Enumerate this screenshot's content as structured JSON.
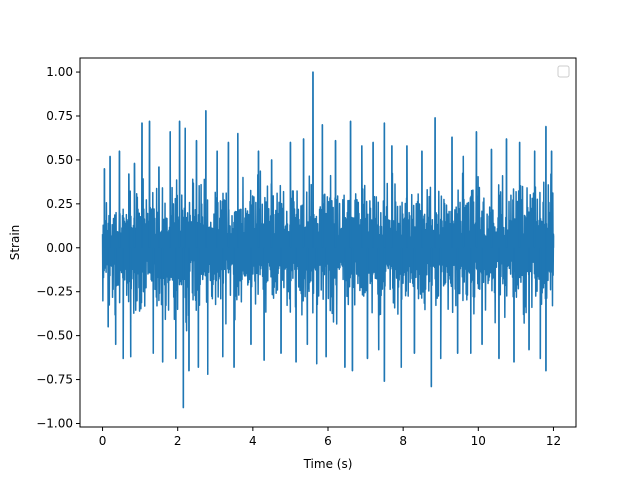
{
  "chart_data": {
    "type": "line",
    "title": "",
    "xlabel": "Time (s)",
    "ylabel": "Strain",
    "xlim": [
      -0.6,
      12.6
    ],
    "ylim": [
      -1.02,
      1.08
    ],
    "xticks": [
      0,
      2,
      4,
      6,
      8,
      10,
      12
    ],
    "xtick_labels": [
      "0",
      "2",
      "4",
      "6",
      "8",
      "10",
      "12"
    ],
    "yticks": [
      -1.0,
      -0.75,
      -0.5,
      -0.25,
      0.0,
      0.25,
      0.5,
      0.75,
      1.0
    ],
    "ytick_labels": [
      "−1.00",
      "−0.75",
      "−0.50",
      "−0.25",
      "0.00",
      "0.25",
      "0.50",
      "0.75",
      "1.00"
    ],
    "grid": false,
    "legend": {
      "placement": "upper-right",
      "entries": []
    },
    "series": [
      {
        "color": "#1f77b4",
        "x_start": 0.0,
        "x_end": 12.0,
        "typical_range": [
          -0.45,
          0.45
        ],
        "description_of_values": "dense noise-like strain signal",
        "peaks": [
          {
            "x": 0.05,
            "y": 0.45
          },
          {
            "x": 0.15,
            "y": -0.45
          },
          {
            "x": 0.2,
            "y": 0.52
          },
          {
            "x": 0.35,
            "y": -0.55
          },
          {
            "x": 0.45,
            "y": 0.55
          },
          {
            "x": 0.55,
            "y": -0.63
          },
          {
            "x": 0.7,
            "y": 0.42
          },
          {
            "x": 0.75,
            "y": -0.62
          },
          {
            "x": 0.85,
            "y": 0.48
          },
          {
            "x": 1.05,
            "y": 0.71
          },
          {
            "x": 1.25,
            "y": 0.72
          },
          {
            "x": 1.35,
            "y": -0.6
          },
          {
            "x": 1.5,
            "y": 0.46
          },
          {
            "x": 1.6,
            "y": -0.65
          },
          {
            "x": 1.8,
            "y": 0.66
          },
          {
            "x": 1.95,
            "y": -0.63
          },
          {
            "x": 2.05,
            "y": 0.72
          },
          {
            "x": 2.15,
            "y": -0.91
          },
          {
            "x": 2.2,
            "y": 0.68
          },
          {
            "x": 2.3,
            "y": -0.7
          },
          {
            "x": 2.5,
            "y": 0.61
          },
          {
            "x": 2.55,
            "y": -0.68
          },
          {
            "x": 2.75,
            "y": 0.78
          },
          {
            "x": 2.8,
            "y": -0.72
          },
          {
            "x": 3.05,
            "y": 0.55
          },
          {
            "x": 3.2,
            "y": -0.62
          },
          {
            "x": 3.35,
            "y": 0.6
          },
          {
            "x": 3.5,
            "y": -0.68
          },
          {
            "x": 3.6,
            "y": 0.65
          },
          {
            "x": 3.95,
            "y": -0.55
          },
          {
            "x": 4.15,
            "y": 0.55
          },
          {
            "x": 4.3,
            "y": -0.64
          },
          {
            "x": 4.5,
            "y": 0.5
          },
          {
            "x": 4.75,
            "y": -0.6
          },
          {
            "x": 5.0,
            "y": 0.6
          },
          {
            "x": 5.15,
            "y": -0.65
          },
          {
            "x": 5.35,
            "y": 0.62
          },
          {
            "x": 5.45,
            "y": -0.55
          },
          {
            "x": 5.6,
            "y": 1.0
          },
          {
            "x": 5.7,
            "y": -0.66
          },
          {
            "x": 5.85,
            "y": 0.7
          },
          {
            "x": 5.95,
            "y": -0.62
          },
          {
            "x": 6.2,
            "y": 0.61
          },
          {
            "x": 6.45,
            "y": -0.68
          },
          {
            "x": 6.6,
            "y": 0.72
          },
          {
            "x": 6.65,
            "y": -0.7
          },
          {
            "x": 6.9,
            "y": 0.58
          },
          {
            "x": 7.05,
            "y": -0.63
          },
          {
            "x": 7.2,
            "y": 0.6
          },
          {
            "x": 7.35,
            "y": -0.58
          },
          {
            "x": 7.5,
            "y": 0.71
          },
          {
            "x": 7.5,
            "y": -0.76
          },
          {
            "x": 7.7,
            "y": 0.58
          },
          {
            "x": 7.95,
            "y": -0.68
          },
          {
            "x": 8.1,
            "y": 0.58
          },
          {
            "x": 8.3,
            "y": -0.6
          },
          {
            "x": 8.5,
            "y": 0.55
          },
          {
            "x": 8.75,
            "y": -0.79
          },
          {
            "x": 8.85,
            "y": 0.74
          },
          {
            "x": 9.0,
            "y": -0.63
          },
          {
            "x": 9.3,
            "y": 0.63
          },
          {
            "x": 9.45,
            "y": -0.6
          },
          {
            "x": 9.6,
            "y": 0.52
          },
          {
            "x": 9.8,
            "y": -0.6
          },
          {
            "x": 9.95,
            "y": 0.66
          },
          {
            "x": 10.1,
            "y": -0.55
          },
          {
            "x": 10.35,
            "y": 0.56
          },
          {
            "x": 10.55,
            "y": -0.63
          },
          {
            "x": 10.75,
            "y": 0.62
          },
          {
            "x": 10.95,
            "y": -0.65
          },
          {
            "x": 11.1,
            "y": 0.6
          },
          {
            "x": 11.35,
            "y": -0.58
          },
          {
            "x": 11.5,
            "y": 0.55
          },
          {
            "x": 11.65,
            "y": -0.63
          },
          {
            "x": 11.8,
            "y": 0.69
          },
          {
            "x": 11.8,
            "y": -0.7
          },
          {
            "x": 11.95,
            "y": 0.55
          },
          {
            "x": 12.0,
            "y": 0.07
          }
        ]
      }
    ]
  }
}
